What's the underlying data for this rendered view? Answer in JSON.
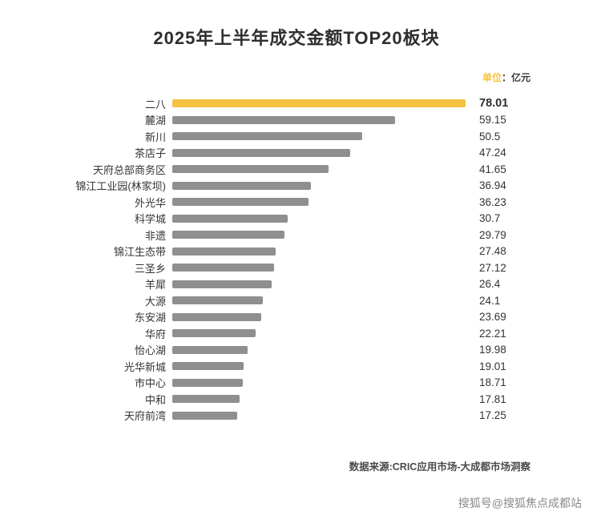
{
  "title": "2025年上半年成交金额TOP20板块",
  "unit": {
    "prefix": "单位",
    "suffix": "：亿元"
  },
  "source": "数据来源:CRIC应用市场-大成都市场洞察",
  "watermark": "搜狐号@搜狐焦点成都站",
  "colors": {
    "highlight": "#F5C242",
    "bar": "#8F8F8F"
  },
  "chart_data": {
    "type": "bar",
    "orientation": "horizontal",
    "title": "2025年上半年成交金额TOP20板块",
    "unit": "亿元",
    "xlim": [
      0,
      78.01
    ],
    "grid": false,
    "legend": false,
    "highlight_index": 0,
    "categories": [
      "二八",
      "麓湖",
      "新川",
      "茶店子",
      "天府总部商务区",
      "锦江工业园(林家坝)",
      "外光华",
      "科学城",
      "非遗",
      "锦江生态带",
      "三圣乡",
      "羊犀",
      "大源",
      "东安湖",
      "华府",
      "怡心湖",
      "光华新城",
      "市中心",
      "中和",
      "天府前湾"
    ],
    "values": [
      78.01,
      59.15,
      50.5,
      47.24,
      41.65,
      36.94,
      36.23,
      30.7,
      29.79,
      27.48,
      27.12,
      26.4,
      24.1,
      23.69,
      22.21,
      19.98,
      19.01,
      18.71,
      17.81,
      17.25
    ]
  }
}
